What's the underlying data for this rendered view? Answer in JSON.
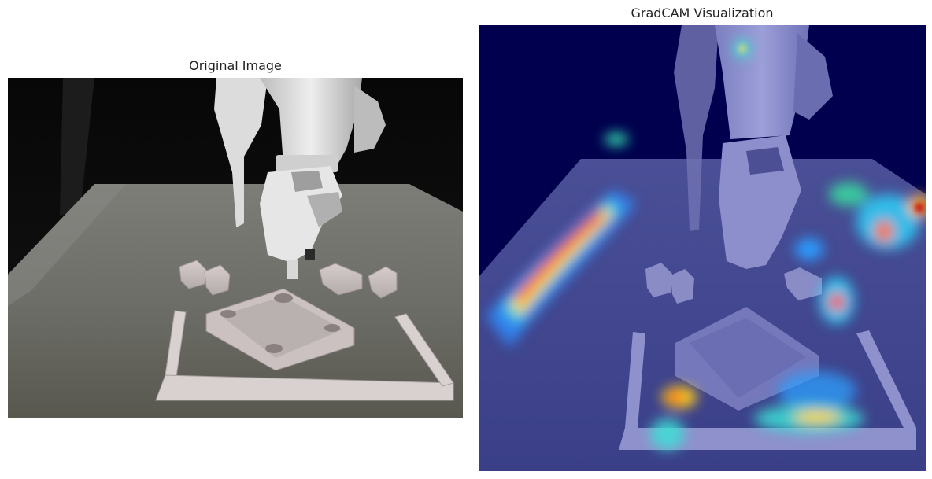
{
  "left_panel": {
    "title": "Original Image"
  },
  "right_panel": {
    "title": "GradCAM Visualization"
  },
  "colors": {
    "background": "#ffffff",
    "heatmap_low": "#00005a",
    "heatmap_mid": "#1e7dff",
    "heatmap_high": "#ff2a00"
  }
}
